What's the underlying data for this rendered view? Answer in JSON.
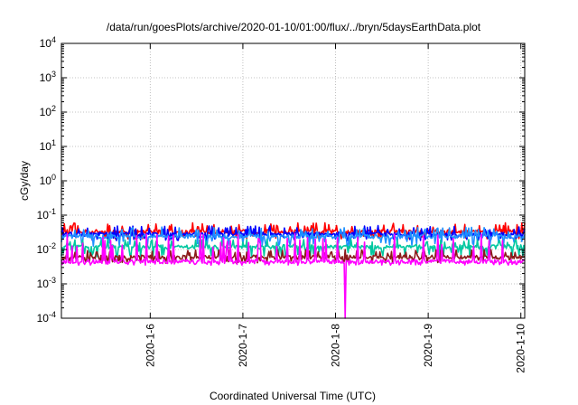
{
  "chart_data": {
    "type": "line",
    "title": "/data/run/goesPlots/archive/2020-01-10/01:00/flux/../bryn/5daysEarthData.plot",
    "xlabel": "Coordinated Universal Time (UTC)",
    "ylabel": "cGy/day",
    "yscale": "log",
    "ylim": [
      0.0001,
      10000
    ],
    "xlim": [
      "2020-01-05T01:00",
      "2020-01-10T01:00"
    ],
    "yticks": [
      {
        "value": 0.0001,
        "exp": "-4"
      },
      {
        "value": 0.001,
        "exp": "-3"
      },
      {
        "value": 0.01,
        "exp": "-2"
      },
      {
        "value": 0.1,
        "exp": "-1"
      },
      {
        "value": 1,
        "exp": "0"
      },
      {
        "value": 10,
        "exp": "1"
      },
      {
        "value": 100,
        "exp": "2"
      },
      {
        "value": 1000,
        "exp": "3"
      },
      {
        "value": 10000,
        "exp": "4"
      }
    ],
    "ytick_base": "10",
    "xticks": [
      {
        "date": "2020-01-06T00:00",
        "label": "2020-1-6"
      },
      {
        "date": "2020-01-07T00:00",
        "label": "2020-1-7"
      },
      {
        "date": "2020-01-08T00:00",
        "label": "2020-1-8"
      },
      {
        "date": "2020-01-09T00:00",
        "label": "2020-1-9"
      },
      {
        "date": "2020-01-10T00:00",
        "label": "2020-1-10"
      }
    ],
    "grid": true,
    "series": [
      {
        "color": "#ff0000",
        "base": 0.033,
        "spike_max": 0.06,
        "dip_min": 0.02
      },
      {
        "color": "#0000ff",
        "base": 0.028,
        "spike_max": 0.05,
        "dip_min": 0.018
      },
      {
        "color": "#1e90ff",
        "base": 0.024,
        "spike_max": 0.045,
        "dip_min": 0.012
      },
      {
        "color": "#00c8a0",
        "base": 0.012,
        "spike_max": 0.02,
        "dip_min": 0.006
      },
      {
        "color": "#8b1a1a",
        "base": 0.006,
        "spike_max": 0.01,
        "dip_min": 0.004
      },
      {
        "color": "#ff00ff",
        "base": 0.0045,
        "spike_max": 0.03,
        "dip_min": 0.0035,
        "outage": {
          "date": "2020-01-08T02:30",
          "min": 0.0001
        }
      }
    ]
  }
}
